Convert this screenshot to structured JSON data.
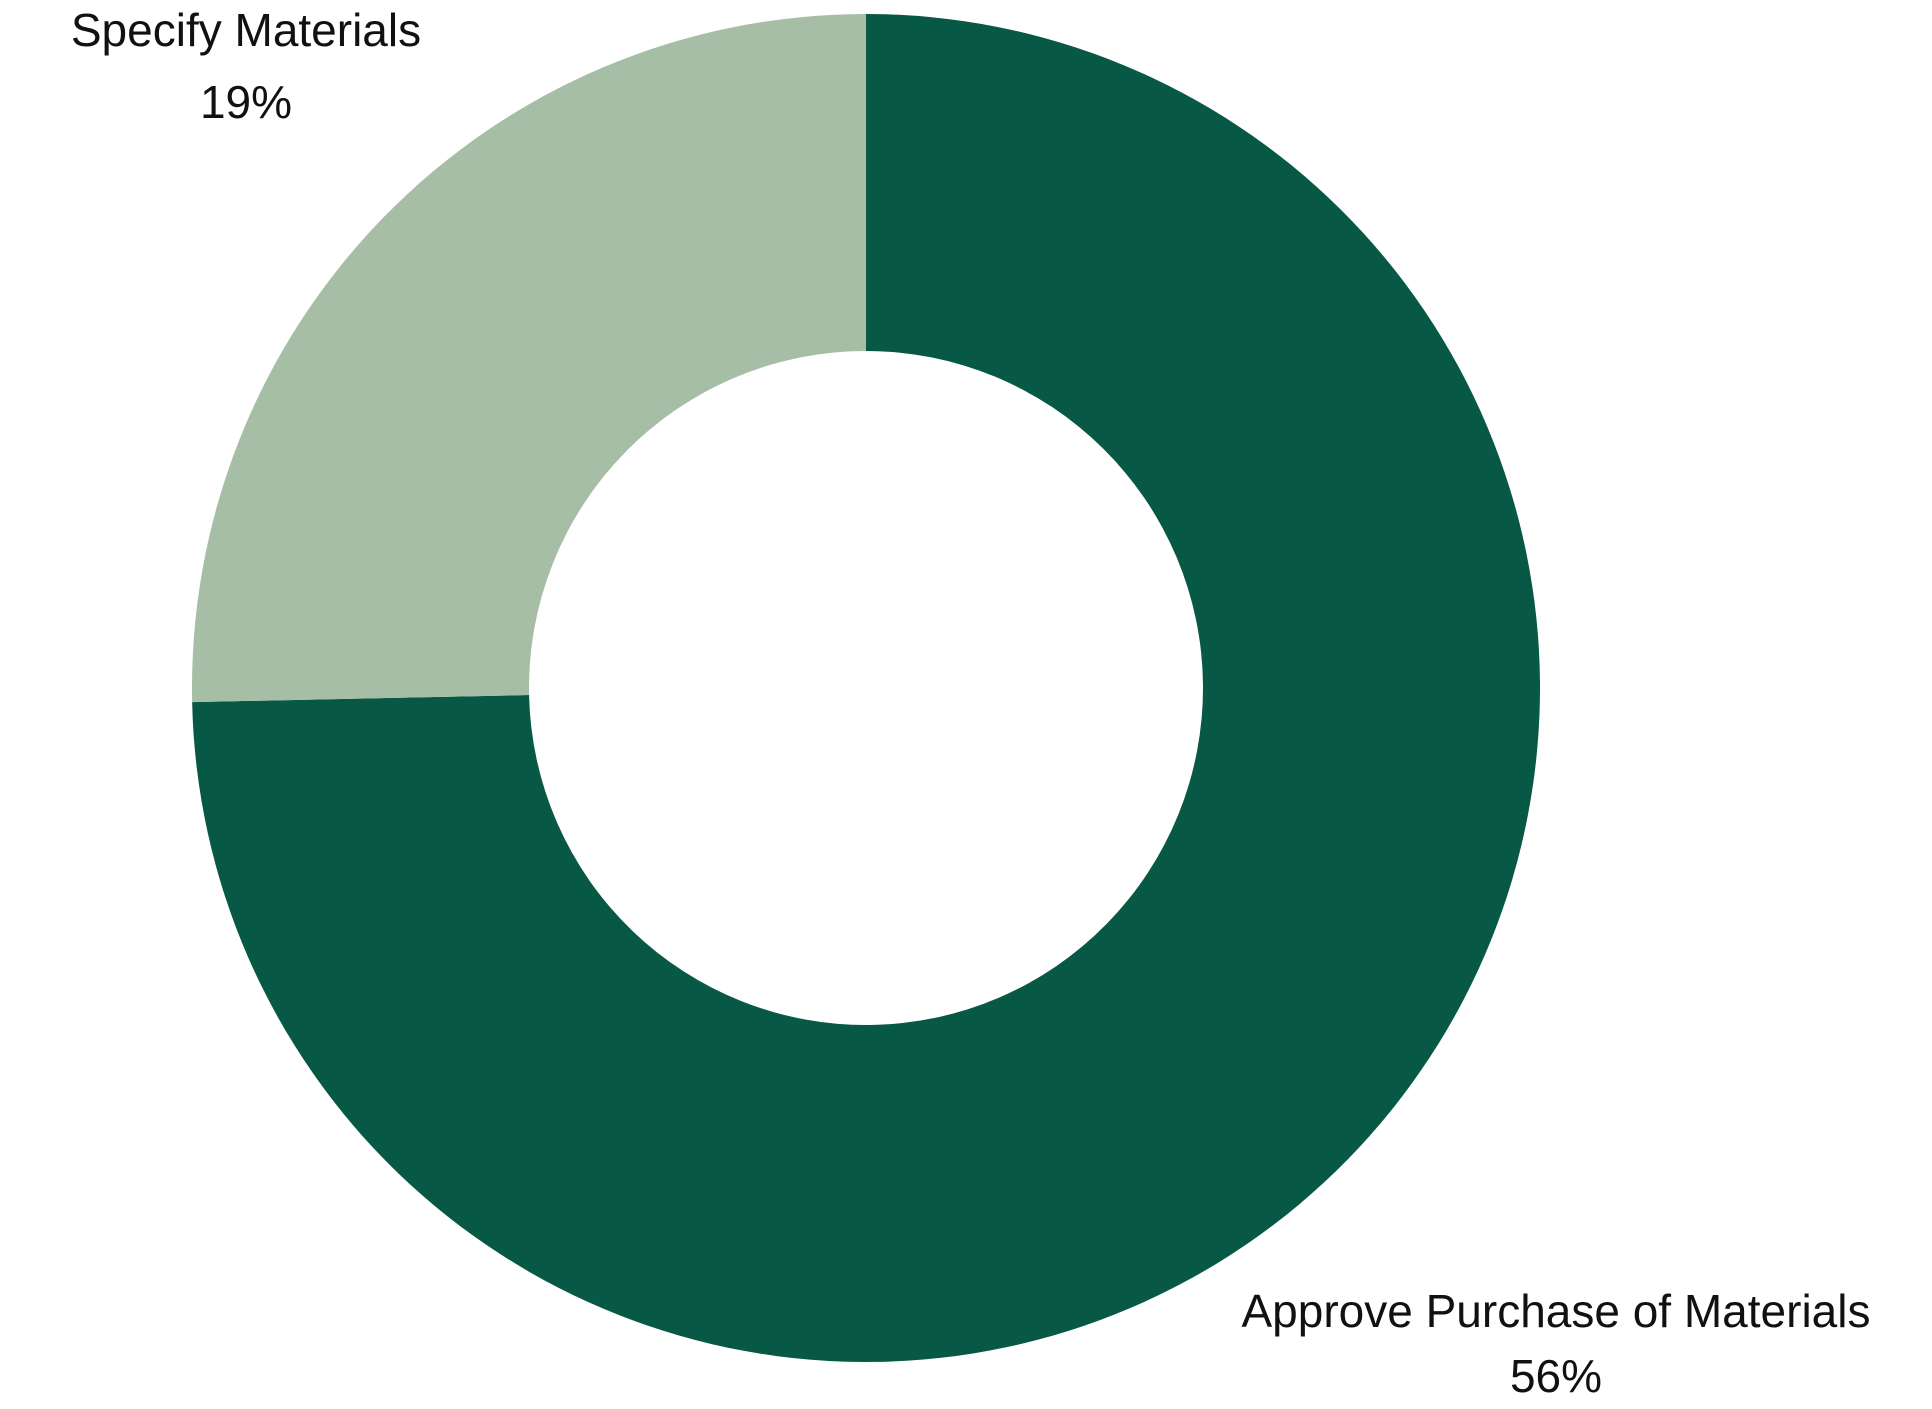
{
  "chart_data": {
    "type": "pie",
    "donut": true,
    "title": "",
    "slices": [
      {
        "label": "Approve Purchase of Materials",
        "value_label": "56%",
        "value": 56,
        "color": "#075844"
      },
      {
        "label": "Specify Materials",
        "value_label": "19%",
        "value": 19,
        "color": "#a6bea6"
      }
    ],
    "legend": "none"
  }
}
